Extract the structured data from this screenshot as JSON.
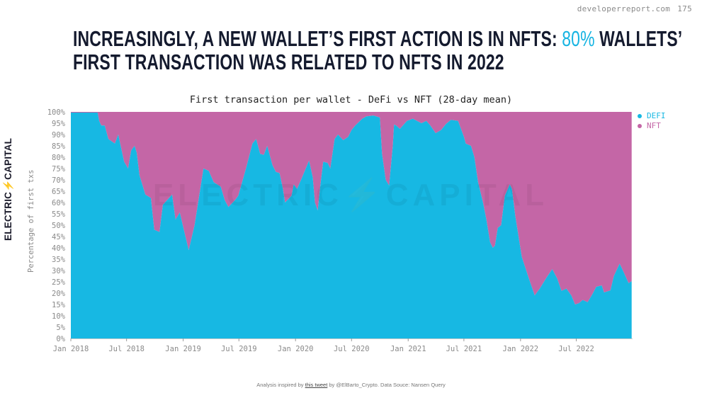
{
  "header": {
    "site": "developerreport.com",
    "page_number": "175"
  },
  "title": {
    "line1_prefix": "Increasingly, a new wallet’s first action is in NFTs: ",
    "line1_highlight": "80%",
    "line1_suffix": " wallets’",
    "line2": "first transaction was related to NFTs in 2022",
    "highlight_color": "#17b4e2"
  },
  "logo": {
    "left": "ELECTRIC",
    "bolt": "⚡",
    "right": "CAPITAL"
  },
  "watermark": "ELECTRIC⚡CAPITAL",
  "footer": {
    "prefix": "Analysis inspired by ",
    "link": "this tweet",
    "suffix": " by @ElBarto_Crypto. Data Souce: Nansen Query"
  },
  "chart_data": {
    "type": "area",
    "stacked": true,
    "normalized": true,
    "title": "First transaction per wallet - DeFi vs NFT (28-day mean)",
    "xlabel": "",
    "ylabel": "Percentage of first txs",
    "ylim": [
      0,
      100
    ],
    "yticks": [
      "0%",
      "5%",
      "10%",
      "15%",
      "20%",
      "25%",
      "30%",
      "35%",
      "40%",
      "45%",
      "50%",
      "55%",
      "60%",
      "65%",
      "70%",
      "75%",
      "80%",
      "85%",
      "90%",
      "95%",
      "100%"
    ],
    "xlim": [
      "2018-01-01",
      "2022-12-31"
    ],
    "xticks": [
      {
        "date": "2018-01-01",
        "label": "Jan 2018"
      },
      {
        "date": "2018-07-01",
        "label": "Jul 2018"
      },
      {
        "date": "2019-01-01",
        "label": "Jan 2019"
      },
      {
        "date": "2019-07-01",
        "label": "Jul 2019"
      },
      {
        "date": "2020-01-01",
        "label": "Jan 2020"
      },
      {
        "date": "2020-07-01",
        "label": "Jul 2020"
      },
      {
        "date": "2021-01-01",
        "label": "Jan 2021"
      },
      {
        "date": "2021-07-01",
        "label": "Jul 2021"
      },
      {
        "date": "2022-01-01",
        "label": "Jan 2022"
      },
      {
        "date": "2022-07-01",
        "label": "Jul 2022"
      }
    ],
    "grid": false,
    "legend_position": "right",
    "series": [
      {
        "name": "DEFI",
        "color": "#17b8e3",
        "points": [
          [
            "2018-01-01",
            99.7
          ],
          [
            "2018-03-29",
            99.7
          ],
          [
            "2018-04-03",
            96
          ],
          [
            "2018-04-10",
            94
          ],
          [
            "2018-04-21",
            94
          ],
          [
            "2018-05-03",
            88
          ],
          [
            "2018-05-24",
            86
          ],
          [
            "2018-06-04",
            90
          ],
          [
            "2018-06-23",
            78
          ],
          [
            "2018-07-06",
            75
          ],
          [
            "2018-07-16",
            83
          ],
          [
            "2018-07-27",
            85
          ],
          [
            "2018-08-03",
            82
          ],
          [
            "2018-08-12",
            72
          ],
          [
            "2018-08-31",
            63.5
          ],
          [
            "2018-09-18",
            62
          ],
          [
            "2018-09-29",
            48
          ],
          [
            "2018-10-16",
            47
          ],
          [
            "2018-10-27",
            59
          ],
          [
            "2018-11-26",
            63.5
          ],
          [
            "2018-12-07",
            52.5
          ],
          [
            "2018-12-21",
            55.6
          ],
          [
            "2019-01-03",
            48
          ],
          [
            "2019-01-19",
            39
          ],
          [
            "2019-02-07",
            50
          ],
          [
            "2019-03-08",
            75
          ],
          [
            "2019-03-25",
            74
          ],
          [
            "2019-04-10",
            69
          ],
          [
            "2019-05-03",
            67
          ],
          [
            "2019-05-16",
            61
          ],
          [
            "2019-05-28",
            58
          ],
          [
            "2019-06-18",
            61
          ],
          [
            "2019-06-29",
            63
          ],
          [
            "2019-07-24",
            75
          ],
          [
            "2019-08-14",
            86
          ],
          [
            "2019-08-26",
            88
          ],
          [
            "2019-09-08",
            81.5
          ],
          [
            "2019-09-20",
            81
          ],
          [
            "2019-10-01",
            85
          ],
          [
            "2019-10-18",
            76.5
          ],
          [
            "2019-10-29",
            73.5
          ],
          [
            "2019-11-10",
            73
          ],
          [
            "2019-11-21",
            66
          ],
          [
            "2019-11-28",
            60
          ],
          [
            "2019-12-19",
            63
          ],
          [
            "2019-12-26",
            68
          ],
          [
            "2020-01-06",
            66
          ],
          [
            "2020-01-22",
            71
          ],
          [
            "2020-02-14",
            78.5
          ],
          [
            "2020-02-26",
            71
          ],
          [
            "2020-03-04",
            60
          ],
          [
            "2020-03-13",
            56.5
          ],
          [
            "2020-03-22",
            68
          ],
          [
            "2020-03-31",
            78
          ],
          [
            "2020-04-14",
            77.5
          ],
          [
            "2020-04-23",
            75
          ],
          [
            "2020-05-07",
            88
          ],
          [
            "2020-05-18",
            90
          ],
          [
            "2020-06-04",
            87.5
          ],
          [
            "2020-06-20",
            89
          ],
          [
            "2020-07-01",
            92
          ],
          [
            "2020-07-13",
            94
          ],
          [
            "2020-08-05",
            97
          ],
          [
            "2020-08-18",
            98
          ],
          [
            "2020-09-10",
            98.4
          ],
          [
            "2020-10-01",
            97.5
          ],
          [
            "2020-10-08",
            81.5
          ],
          [
            "2020-10-20",
            70
          ],
          [
            "2020-10-31",
            67.5
          ],
          [
            "2020-11-12",
            85
          ],
          [
            "2020-11-16",
            94.4
          ],
          [
            "2020-11-23",
            94
          ],
          [
            "2020-12-05",
            92.5
          ],
          [
            "2020-12-28",
            96
          ],
          [
            "2021-01-16",
            97
          ],
          [
            "2021-02-13",
            95
          ],
          [
            "2021-03-01",
            96
          ],
          [
            "2021-03-14",
            94
          ],
          [
            "2021-03-31",
            90.6
          ],
          [
            "2021-04-18",
            92
          ],
          [
            "2021-05-04",
            94.7
          ],
          [
            "2021-05-20",
            96.5
          ],
          [
            "2021-06-12",
            96
          ],
          [
            "2021-07-01",
            89
          ],
          [
            "2021-07-07",
            86
          ],
          [
            "2021-07-24",
            85
          ],
          [
            "2021-08-04",
            80
          ],
          [
            "2021-08-16",
            69
          ],
          [
            "2021-09-01",
            60
          ],
          [
            "2021-09-12",
            52.5
          ],
          [
            "2021-09-24",
            42.5
          ],
          [
            "2021-10-03",
            40
          ],
          [
            "2021-10-10",
            41
          ],
          [
            "2021-10-19",
            48.8
          ],
          [
            "2021-10-30",
            50
          ],
          [
            "2021-11-11",
            63
          ],
          [
            "2021-11-27",
            68
          ],
          [
            "2021-12-04",
            66
          ],
          [
            "2021-12-15",
            54
          ],
          [
            "2022-01-05",
            36
          ],
          [
            "2022-01-28",
            26.5
          ],
          [
            "2022-02-16",
            19
          ],
          [
            "2022-03-04",
            21.9
          ],
          [
            "2022-03-27",
            27
          ],
          [
            "2022-04-14",
            30.6
          ],
          [
            "2022-04-30",
            26.5
          ],
          [
            "2022-05-14",
            21
          ],
          [
            "2022-05-30",
            22
          ],
          [
            "2022-06-15",
            19
          ],
          [
            "2022-06-27",
            15
          ],
          [
            "2022-07-10",
            15.6
          ],
          [
            "2022-07-22",
            17
          ],
          [
            "2022-08-07",
            16
          ],
          [
            "2022-08-23",
            19.7
          ],
          [
            "2022-09-04",
            22.8
          ],
          [
            "2022-09-22",
            23.4
          ],
          [
            "2022-09-29",
            20.3
          ],
          [
            "2022-10-20",
            21.2
          ],
          [
            "2022-10-31",
            27.5
          ],
          [
            "2022-11-12",
            31
          ],
          [
            "2022-11-19",
            33
          ],
          [
            "2022-12-05",
            28.4
          ],
          [
            "2022-12-18",
            24.4
          ],
          [
            "2022-12-28",
            25.3
          ]
        ]
      },
      {
        "name": "NFT",
        "color": "#c466a6",
        "values_rule": "remainder to 100%"
      }
    ]
  }
}
